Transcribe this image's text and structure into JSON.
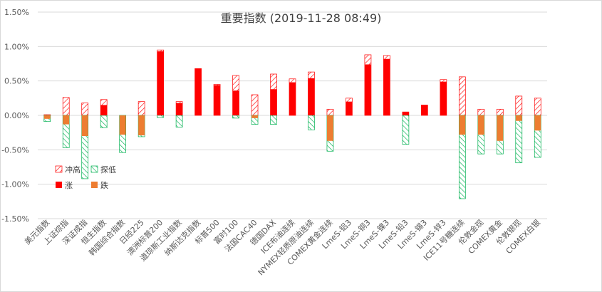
{
  "chart_data": {
    "type": "bar",
    "title": "重要指数 (2019-11-28 08:49)",
    "xlabel": "",
    "ylabel": "",
    "ylim": [
      -1.5,
      1.5
    ],
    "yticks": [
      "1.50%",
      "1.00%",
      "0.50%",
      "0.00%",
      "-0.50%",
      "-1.00%",
      "-1.50%"
    ],
    "categories": [
      "美元指数",
      "上证综指",
      "深证成指",
      "恒生指数",
      "韩国综合指数",
      "日经225",
      "澳洲标普200",
      "道琼斯工业指数",
      "纳斯达克指数",
      "标普500",
      "富时100",
      "法国CAC40",
      "德国DAX",
      "ICE布油连续",
      "NYMEX轻质原油连续",
      "COMEX黄金连续",
      "LmeS-铝3",
      "LmeS-铜3",
      "LmeS-镍3",
      "LmeS-铅3",
      "LmeS-锡3",
      "LmeS-锌3",
      "ICE11号糖连续",
      "伦敦金现",
      "COMEX黄金",
      "伦敦银现",
      "COMEX白银"
    ],
    "series": [
      {
        "name": "冲高",
        "color": "#ff0000",
        "pattern": "diagonal-hatch",
        "values": [
          0.01,
          0.26,
          0.18,
          0.23,
          0.0,
          0.2,
          0.95,
          0.2,
          0.68,
          0.45,
          0.58,
          0.3,
          0.6,
          0.53,
          0.63,
          0.09,
          0.25,
          0.88,
          0.87,
          0.05,
          0.15,
          0.52,
          0.56,
          0.09,
          0.09,
          0.28,
          0.25
        ]
      },
      {
        "name": "探低",
        "color": "#00b050",
        "pattern": "diagonal-hatch",
        "values": [
          -0.09,
          -0.47,
          -0.92,
          -0.18,
          -0.54,
          -0.31,
          -0.03,
          -0.17,
          0.0,
          0.0,
          -0.04,
          -0.13,
          -0.13,
          0.0,
          -0.21,
          -0.52,
          0.0,
          0.0,
          0.0,
          -0.42,
          0.0,
          0.0,
          -1.21,
          -0.56,
          -0.56,
          -0.69,
          -0.61
        ]
      },
      {
        "name": "涨",
        "color": "#ff0000",
        "pattern": "solid",
        "values": [
          0,
          0,
          0,
          0.15,
          0,
          0,
          0.93,
          0.18,
          0.68,
          0.44,
          0.36,
          0,
          0.38,
          0.48,
          0.54,
          0,
          0.2,
          0.74,
          0.82,
          0.05,
          0.15,
          0.49,
          0,
          0,
          0,
          0,
          0
        ]
      },
      {
        "name": "跌",
        "color": "#ed7d31",
        "pattern": "solid",
        "values": [
          -0.05,
          -0.13,
          -0.3,
          0,
          -0.28,
          -0.29,
          0,
          0,
          0,
          0,
          0,
          -0.04,
          0,
          0,
          0,
          -0.37,
          0,
          0,
          0,
          0,
          0,
          0,
          -0.28,
          -0.28,
          -0.37,
          -0.08,
          -0.22
        ]
      }
    ],
    "legend": {
      "position": "left-middle"
    },
    "grid": true
  }
}
